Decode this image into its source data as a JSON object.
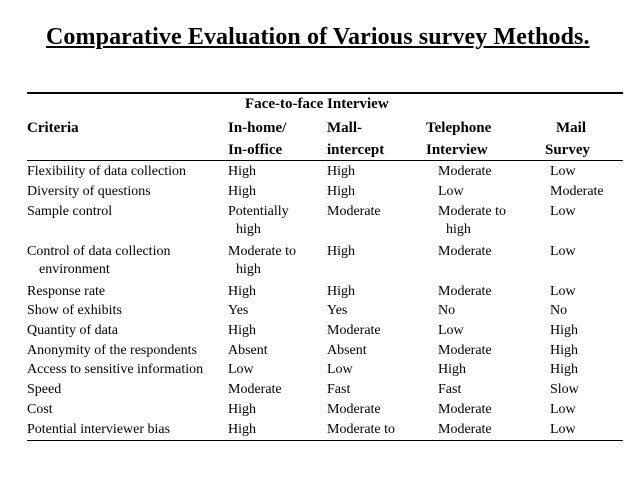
{
  "title": "Comparative Evaluation of Various survey Methods.",
  "header": {
    "group_label": "Face-to-face Interview",
    "criteria": "Criteria",
    "in_home": [
      "In-home/",
      "In-office"
    ],
    "mall": [
      "Mall-",
      "intercept"
    ],
    "telephone": [
      "Telephone",
      "Interview"
    ],
    "mail": [
      "Mail",
      "Survey"
    ]
  },
  "rows": [
    {
      "criteria": [
        "Flexibility of data collection"
      ],
      "in_home": [
        "High"
      ],
      "mall": [
        "High"
      ],
      "telephone": [
        "Moderate"
      ],
      "mail": [
        "Low"
      ]
    },
    {
      "criteria": [
        "Diversity of questions"
      ],
      "in_home": [
        "High"
      ],
      "mall": [
        "High"
      ],
      "telephone": [
        "Low"
      ],
      "mail": [
        "Moderate"
      ]
    },
    {
      "criteria": [
        "Sample control"
      ],
      "in_home": [
        "Potentially",
        "high"
      ],
      "mall": [
        "Moderate"
      ],
      "telephone": [
        "Moderate to",
        "high"
      ],
      "mail": [
        "Low"
      ]
    },
    {
      "criteria": [
        "Control of data collection",
        "environment"
      ],
      "in_home": [
        "Moderate to",
        "high"
      ],
      "mall": [
        "High"
      ],
      "telephone": [
        "Moderate"
      ],
      "mail": [
        "Low"
      ]
    },
    {
      "criteria": [
        "Response rate"
      ],
      "in_home": [
        "High"
      ],
      "mall": [
        "High"
      ],
      "telephone": [
        "Moderate"
      ],
      "mail": [
        "Low"
      ]
    },
    {
      "criteria": [
        "Show of exhibits"
      ],
      "in_home": [
        "Yes"
      ],
      "mall": [
        "Yes"
      ],
      "telephone": [
        "No"
      ],
      "mail": [
        "No"
      ]
    },
    {
      "criteria": [
        "Quantity of data"
      ],
      "in_home": [
        "High"
      ],
      "mall": [
        "Moderate"
      ],
      "telephone": [
        "Low"
      ],
      "mail": [
        "High"
      ]
    },
    {
      "criteria": [
        "Anonymity of the respondents"
      ],
      "in_home": [
        "Absent"
      ],
      "mall": [
        "Absent"
      ],
      "telephone": [
        "Moderate"
      ],
      "mail": [
        "High"
      ]
    },
    {
      "criteria": [
        "Access to sensitive information"
      ],
      "in_home": [
        "Low"
      ],
      "mall": [
        "Low"
      ],
      "telephone": [
        "High"
      ],
      "mail": [
        "High"
      ]
    },
    {
      "criteria": [
        "Speed"
      ],
      "in_home": [
        "Moderate"
      ],
      "mall": [
        "Fast"
      ],
      "telephone": [
        "Fast"
      ],
      "mail": [
        "Slow"
      ]
    },
    {
      "criteria": [
        "Cost"
      ],
      "in_home": [
        "High"
      ],
      "mall": [
        "Moderate"
      ],
      "telephone": [
        "Moderate"
      ],
      "mail": [
        "Low"
      ]
    },
    {
      "criteria": [
        "Potential interviewer bias"
      ],
      "in_home": [
        "High"
      ],
      "mall": [
        "Moderate to"
      ],
      "telephone": [
        "Moderate"
      ],
      "mail": [
        "Low"
      ]
    }
  ]
}
